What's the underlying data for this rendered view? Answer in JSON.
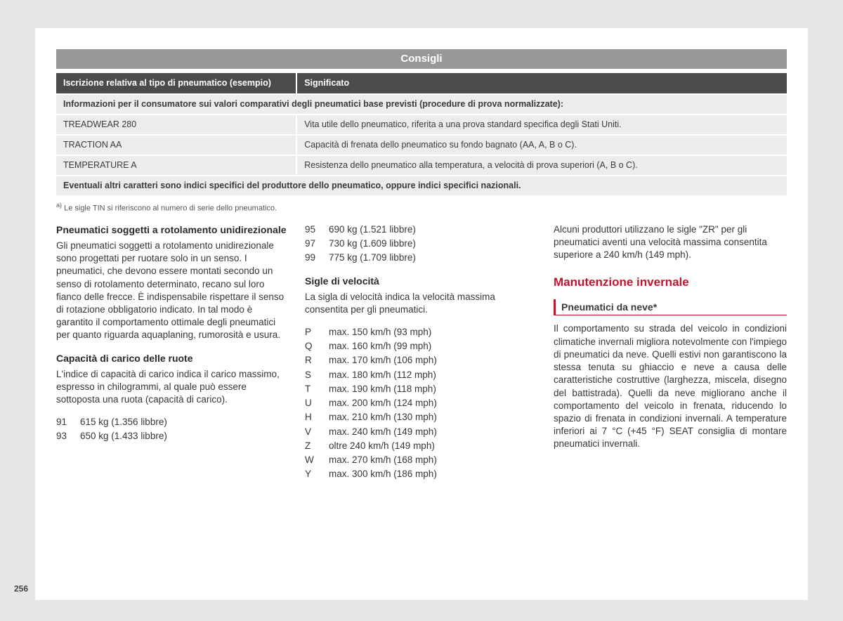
{
  "page": {
    "number": "256",
    "title": "Consigli"
  },
  "table": {
    "header_left": "Iscrizione relativa al tipo di pneumatico (esempio)",
    "header_right": "Significato",
    "row_info": "Informazioni per il consumatore sui valori comparativi degli pneumatici base previsti (procedure di prova normalizzate):",
    "rows": [
      {
        "l": "TREADWEAR 280",
        "r": "Vita utile dello pneumatico, riferita a una prova standard specifica degli Stati Uniti."
      },
      {
        "l": "TRACTION AA",
        "r": "Capacità di frenata dello pneumatico su fondo bagnato (AA, A, B o C)."
      },
      {
        "l": "TEMPERATURE A",
        "r": "Resistenza dello pneumatico alla temperatura, a velocità di prova superiori (A, B o C)."
      }
    ],
    "row_footer": "Eventuali altri caratteri sono indici specifici del produttore dello pneumatico, oppure indici specifici nazionali."
  },
  "footnote": "Le sigle TIN si riferiscono al numero di serie dello pneumatico.",
  "col1": {
    "h1": "Pneumatici soggetti a rotolamento unidirezionale",
    "p1": "Gli pneumatici soggetti a rotolamento unidirezionale sono progettati per ruotare solo in un senso. I pneumatici, che devono essere montati secondo un senso di rotolamento determinato, recano sul loro fianco delle frecce. È indispensabile rispettare il senso di rotazione obbligatorio indicato. In tal modo è garantito il comportamento ottimale degli pneumatici per quanto riguarda aquaplaning, rumorosità e usura.",
    "h2": "Capacità di carico delle ruote",
    "p2": "L'indice di capacità di carico indica il carico massimo, espresso in chilogrammi, al quale può essere sottoposta una ruota (capacità di carico).",
    "loads1": [
      {
        "k": "91",
        "v": "615 kg (1.356 libbre)"
      },
      {
        "k": "93",
        "v": "650 kg (1.433 libbre)"
      }
    ]
  },
  "col2": {
    "loads2": [
      {
        "k": "95",
        "v": "690 kg (1.521 libbre)"
      },
      {
        "k": "97",
        "v": "730 kg (1.609 libbre)"
      },
      {
        "k": "99",
        "v": "775 kg (1.709 libbre)"
      }
    ],
    "h1": "Sigle di velocità",
    "p1": "La sigla di velocità indica la velocità massima consentita per gli pneumatici.",
    "speeds": [
      {
        "k": "P",
        "v": "max. 150 km/h (93 mph)"
      },
      {
        "k": "Q",
        "v": "max. 160 km/h (99 mph)"
      },
      {
        "k": "R",
        "v": "max. 170 km/h (106 mph)"
      },
      {
        "k": "S",
        "v": "max. 180 km/h (112 mph)"
      },
      {
        "k": "T",
        "v": "max. 190 km/h (118 mph)"
      },
      {
        "k": "U",
        "v": "max. 200 km/h (124 mph)"
      },
      {
        "k": "H",
        "v": "max. 210 km/h (130 mph)"
      },
      {
        "k": "V",
        "v": "max. 240 km/h (149 mph)"
      },
      {
        "k": "Z",
        "v": "oltre 240 km/h (149 mph)"
      },
      {
        "k": "W",
        "v": "max. 270 km/h (168 mph)"
      },
      {
        "k": "Y",
        "v": "max. 300 km/h (186 mph)"
      }
    ]
  },
  "col3": {
    "p1": "Alcuni produttori utilizzano le sigle \"ZR\" per gli pneumatici aventi una velocità massima consentita superiore a 240 km/h (149 mph).",
    "section": "Manutenzione invernale",
    "sub": "Pneumatici da neve*",
    "p2": "Il comportamento su strada del veicolo in condizioni climatiche invernali migliora notevolmente con l'impiego di pneumatici da neve. Quelli estivi non garantiscono la stessa tenuta su ghiaccio e neve a causa delle caratteristiche costruttive (larghezza, miscela, disegno del battistrada). Quelli da neve migliorano anche il comportamento del veicolo in frenata, riducendo lo spazio di frenata in condizioni invernali. A temperature inferiori ai 7 °C (+45 °F) SEAT consiglia di montare pneumatici invernali."
  },
  "colors": {
    "page_bg": "#e6e6e6",
    "paper_bg": "#ffffff",
    "titlebar_bg": "#989898",
    "th_bg": "#4b4b4b",
    "td_bg": "#ececec",
    "accent_red": "#c5122e"
  }
}
